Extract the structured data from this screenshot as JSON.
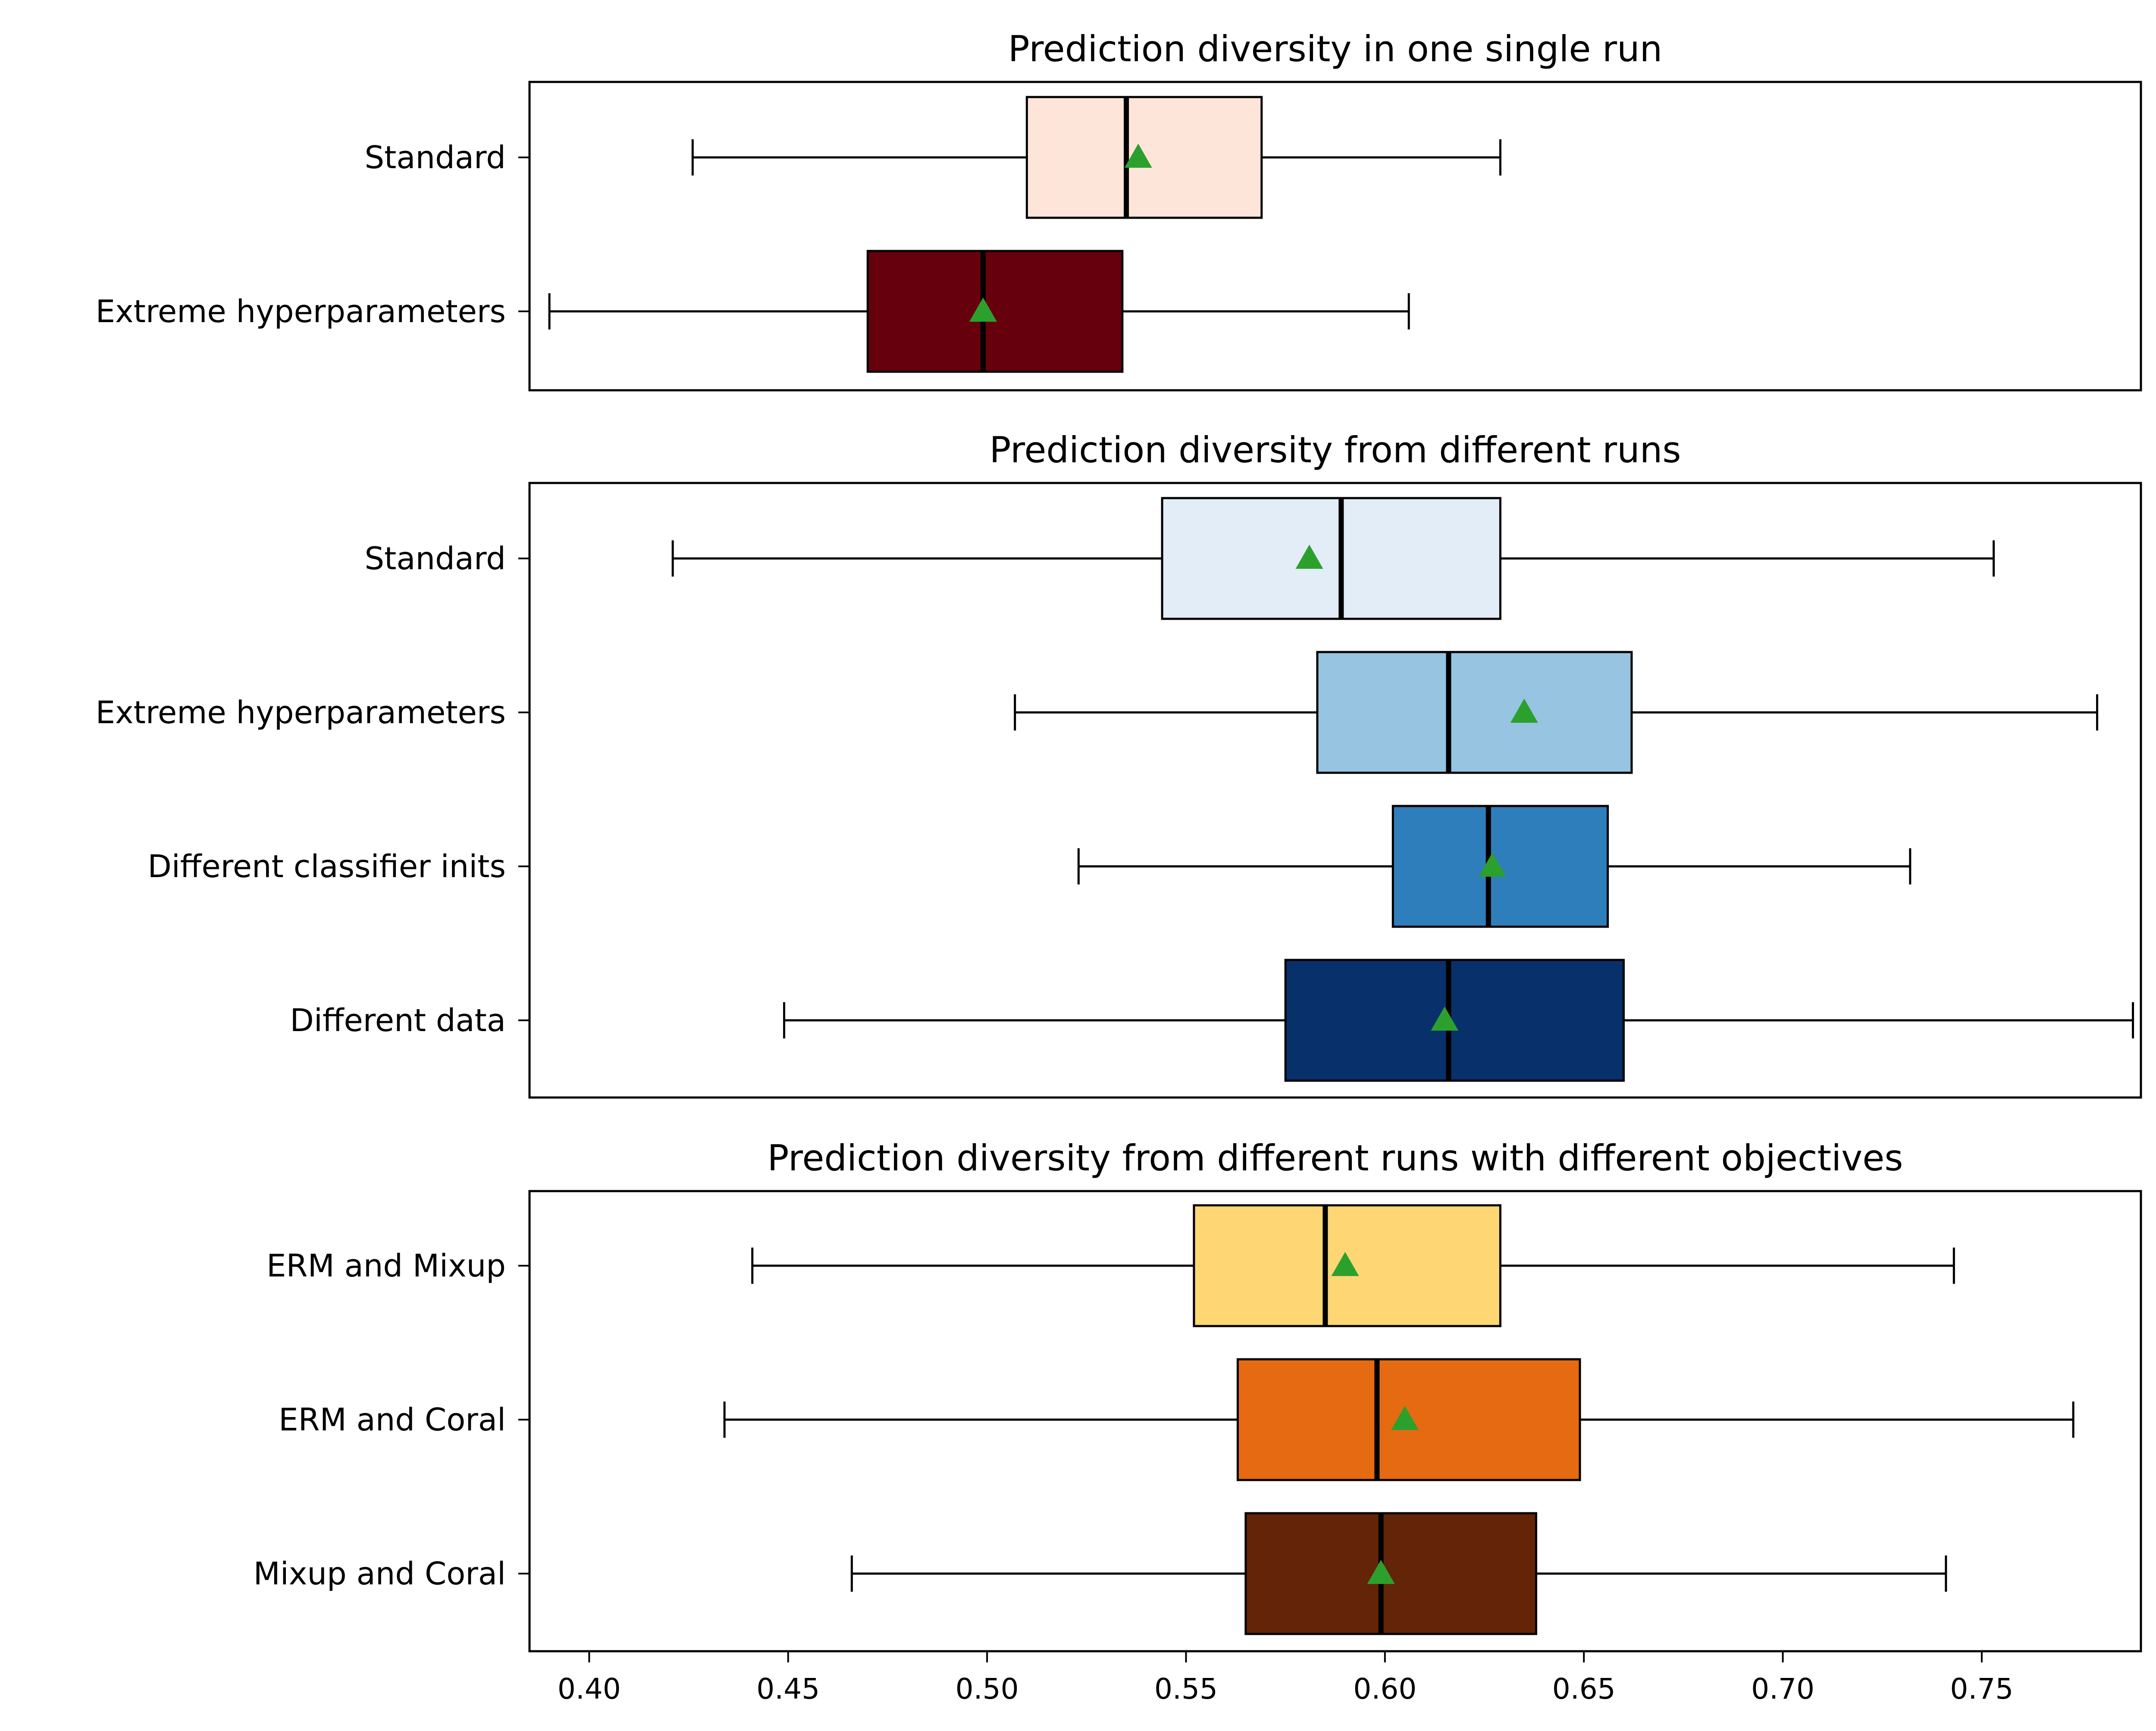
{
  "chart_data": [
    {
      "type": "boxplot",
      "orientation": "horizontal",
      "title": "Prediction diversity in one single run",
      "xlim": [
        0.385,
        0.79
      ],
      "categories": [
        "Standard",
        "Extreme hyperparameters"
      ],
      "boxes": [
        {
          "label": "Standard",
          "whislo": 0.426,
          "q1": 0.51,
          "med": 0.535,
          "q3": 0.569,
          "whishi": 0.629,
          "mean": 0.538,
          "color": "#fee5d9"
        },
        {
          "label": "Extreme hyperparameters",
          "whislo": 0.39,
          "q1": 0.47,
          "med": 0.499,
          "q3": 0.534,
          "whishi": 0.606,
          "mean": 0.499,
          "color": "#67000d"
        }
      ]
    },
    {
      "type": "boxplot",
      "orientation": "horizontal",
      "title": "Prediction diversity from different runs",
      "xlim": [
        0.385,
        0.79
      ],
      "categories": [
        "Standard",
        "Extreme hyperparameters",
        "Different classifier inits",
        "Different data"
      ],
      "boxes": [
        {
          "label": "Standard",
          "whislo": 0.421,
          "q1": 0.544,
          "med": 0.589,
          "q3": 0.629,
          "whishi": 0.753,
          "mean": 0.581,
          "color": "#e2edf8"
        },
        {
          "label": "Extreme hyperparameters",
          "whislo": 0.507,
          "q1": 0.583,
          "med": 0.616,
          "q3": 0.662,
          "whishi": 0.779,
          "mean": 0.635,
          "color": "#96c4e1"
        },
        {
          "label": "Different classifier inits",
          "whislo": 0.523,
          "q1": 0.602,
          "med": 0.626,
          "q3": 0.656,
          "whishi": 0.732,
          "mean": 0.627,
          "color": "#2f7ebc"
        },
        {
          "label": "Different data",
          "whislo": 0.449,
          "q1": 0.575,
          "med": 0.616,
          "q3": 0.66,
          "whishi": 0.788,
          "mean": 0.615,
          "color": "#08306b"
        }
      ]
    },
    {
      "type": "boxplot",
      "orientation": "horizontal",
      "title": "Prediction diversity from different runs with different objectives",
      "xlim": [
        0.385,
        0.79
      ],
      "categories": [
        "ERM and Mixup",
        "ERM and Coral",
        "Mixup and Coral"
      ],
      "xticks": [
        "0.40",
        "0.45",
        "0.50",
        "0.55",
        "0.60",
        "0.65",
        "0.70",
        "0.75"
      ],
      "boxes": [
        {
          "label": "ERM and Mixup",
          "whislo": 0.441,
          "q1": 0.552,
          "med": 0.585,
          "q3": 0.629,
          "whishi": 0.743,
          "mean": 0.59,
          "color": "#fed673"
        },
        {
          "label": "ERM and Coral",
          "whislo": 0.434,
          "q1": 0.563,
          "med": 0.598,
          "q3": 0.649,
          "whishi": 0.773,
          "mean": 0.605,
          "color": "#e66a11"
        },
        {
          "label": "Mixup and Coral",
          "whislo": 0.466,
          "q1": 0.565,
          "med": 0.599,
          "q3": 0.638,
          "whishi": 0.741,
          "mean": 0.599,
          "color": "#642408"
        }
      ]
    }
  ],
  "style": {
    "mean_marker_color": "#2ca02c",
    "median_color": "#000000",
    "edge_color": "#000000"
  }
}
